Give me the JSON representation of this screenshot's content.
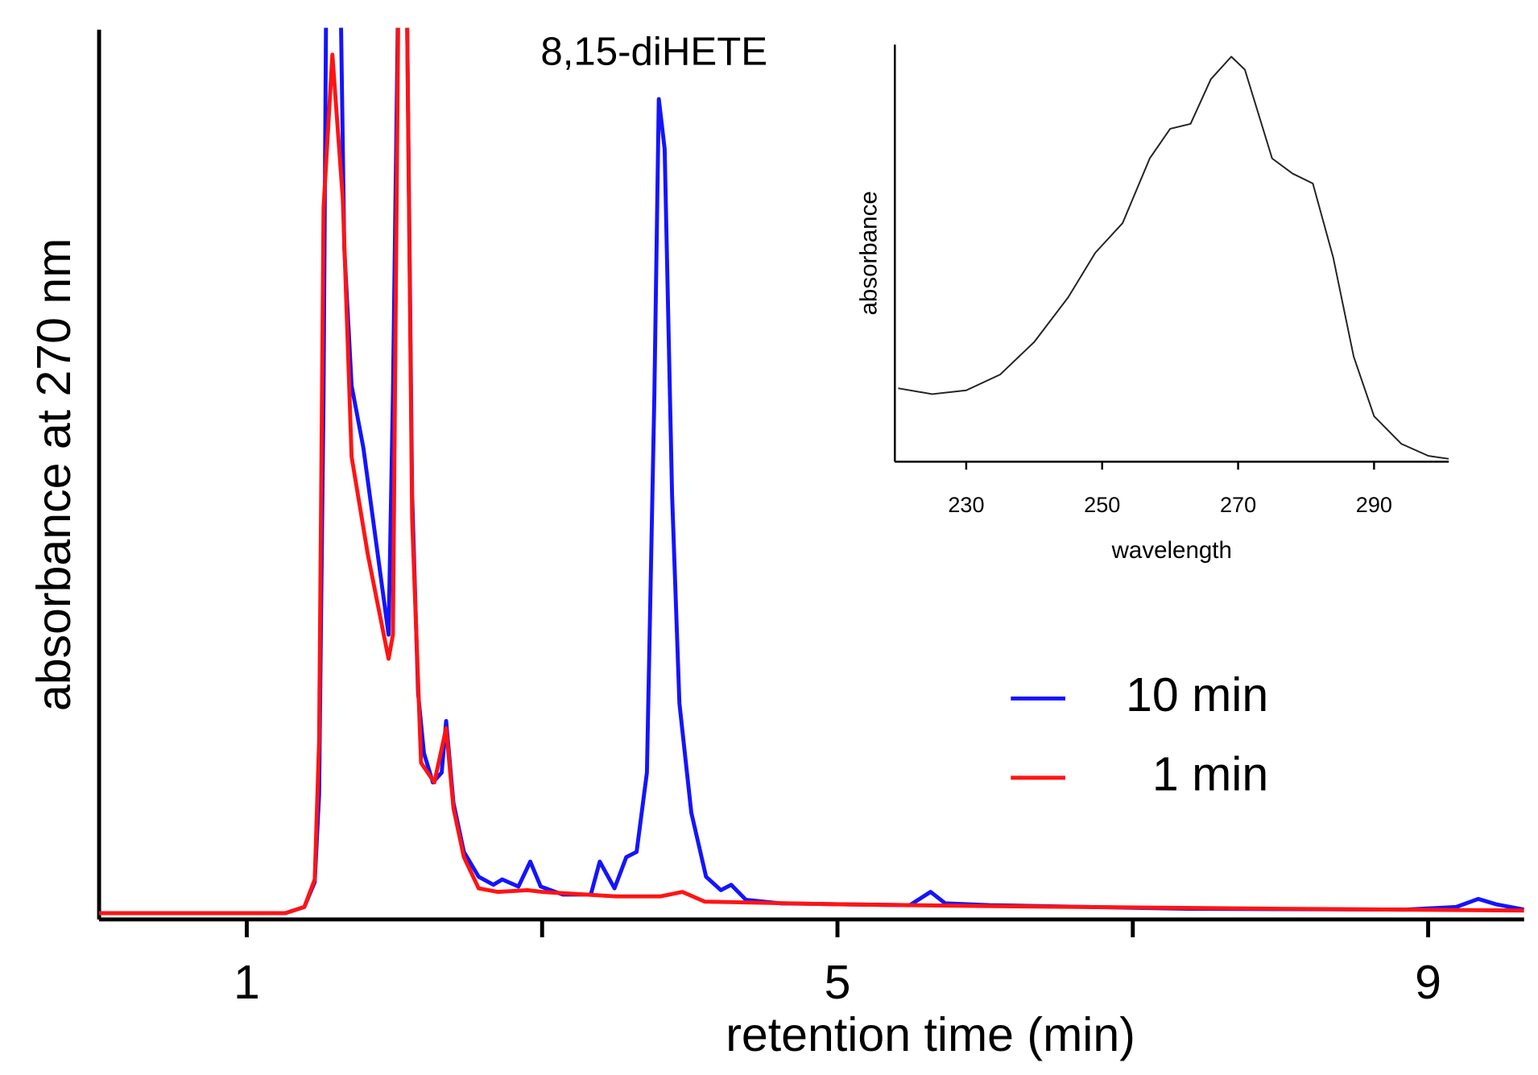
{
  "chart_data": [
    {
      "type": "line",
      "xlabel": "retention time (min)",
      "ylabel": "absorbance at 270 nm",
      "annotation": "8,15-diHETE",
      "xlim": [
        0,
        9.65
      ],
      "ylim": [
        0,
        100
      ],
      "xticks": [
        1,
        5,
        9
      ],
      "xminor": [
        3,
        7
      ],
      "legend": "right",
      "series": [
        {
          "name": "10 min",
          "color": "#1414ff",
          "x": [
            0,
            1.26,
            1.39,
            1.46,
            1.49,
            1.52,
            1.54,
            1.63,
            1.66,
            1.71,
            1.79,
            1.96,
            1.99,
            2.03,
            2.08,
            2.12,
            2.16,
            2.2,
            2.26,
            2.32,
            2.35,
            2.4,
            2.47,
            2.57,
            2.67,
            2.73,
            2.84,
            2.92,
            2.99,
            3.14,
            3.33,
            3.39,
            3.49,
            3.57,
            3.64,
            3.71,
            3.76,
            3.79,
            3.83,
            3.88,
            3.93,
            4.01,
            4.11,
            4.21,
            4.28,
            4.38,
            4.62,
            5.02,
            5.49,
            5.63,
            5.73,
            6.03,
            7.37,
            8.85,
            9.19,
            9.34,
            9.46,
            9.65
          ],
          "values": [
            0.7,
            0.7,
            1.4,
            4.2,
            14,
            59,
            110,
            110,
            75.5,
            60,
            53,
            32,
            59,
            110,
            110,
            47.7,
            25.4,
            18.7,
            15.4,
            16.5,
            22.3,
            13.1,
            7.6,
            4.8,
            3.9,
            4.5,
            3.7,
            6.5,
            3.7,
            2.8,
            2.8,
            6.5,
            3.5,
            7,
            7.6,
            16.5,
            58.8,
            92.2,
            86.6,
            47.7,
            24.3,
            12,
            4.8,
            3.3,
            3.9,
            2.2,
            1.8,
            1.7,
            1.6,
            3.1,
            1.8,
            1.6,
            1.2,
            1.1,
            1.4,
            2.3,
            1.7,
            1.1
          ]
        },
        {
          "name": "1 min",
          "color": "#ff1414",
          "x": [
            0,
            1.26,
            1.39,
            1.46,
            1.49,
            1.52,
            1.58,
            1.65,
            1.71,
            1.82,
            1.96,
            1.99,
            2.03,
            2.08,
            2.12,
            2.18,
            2.27,
            2.35,
            2.4,
            2.47,
            2.57,
            2.7,
            2.9,
            3,
            3.5,
            3.8,
            3.95,
            4.1,
            5,
            6,
            8,
            9.65
          ],
          "values": [
            0.7,
            0.7,
            1.4,
            4.5,
            20,
            80,
            97.2,
            81,
            52,
            41,
            29.3,
            32,
            110,
            110,
            45,
            17.6,
            15.4,
            21.5,
            12.5,
            7,
            3.5,
            3.1,
            3.3,
            3.1,
            2.6,
            2.6,
            3.1,
            2,
            1.7,
            1.5,
            1.2,
            1
          ]
        }
      ]
    },
    {
      "type": "line",
      "xlabel": "wavelength",
      "ylabel": "absorbance",
      "xlim": [
        219.5,
        301
      ],
      "ylim": [
        0,
        100
      ],
      "xticks": [
        230,
        250,
        270,
        290
      ],
      "series": [
        {
          "color": "#222222",
          "x": [
            220,
            225,
            230,
            235,
            240,
            245,
            249,
            253,
            257,
            260,
            263,
            266,
            269,
            271,
            275,
            278,
            281,
            284,
            287,
            290,
            294,
            298,
            301
          ],
          "values": [
            17.6,
            16.2,
            17.1,
            20.9,
            28.7,
            39.4,
            50.1,
            57.2,
            72.7,
            79.8,
            81,
            91.7,
            97.1,
            94,
            72.7,
            69.1,
            66.7,
            48.9,
            25.2,
            10.9,
            4.3,
            1.4,
            0.7
          ]
        }
      ]
    }
  ]
}
